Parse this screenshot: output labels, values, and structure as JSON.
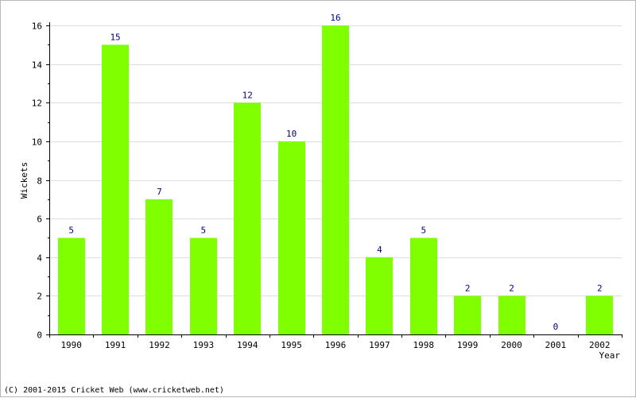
{
  "footer": "(C) 2001-2015 Cricket Web (www.cricketweb.net)",
  "chart_data": {
    "type": "bar",
    "categories": [
      "1990",
      "1991",
      "1992",
      "1993",
      "1994",
      "1995",
      "1996",
      "1997",
      "1998",
      "1999",
      "2000",
      "2001",
      "2002"
    ],
    "values": [
      5,
      15,
      7,
      5,
      12,
      10,
      16,
      4,
      5,
      2,
      2,
      0,
      2
    ],
    "title": "",
    "xlabel": "Year",
    "ylabel": "Wickets",
    "ylim": [
      0,
      16
    ],
    "yticks": [
      0,
      2,
      4,
      6,
      8,
      10,
      12,
      14,
      16
    ],
    "grid": true,
    "data_labels": true,
    "legend": "none",
    "bar_color": "#80ff00",
    "grid_color": "#dddddd",
    "label_color": "#000080"
  }
}
